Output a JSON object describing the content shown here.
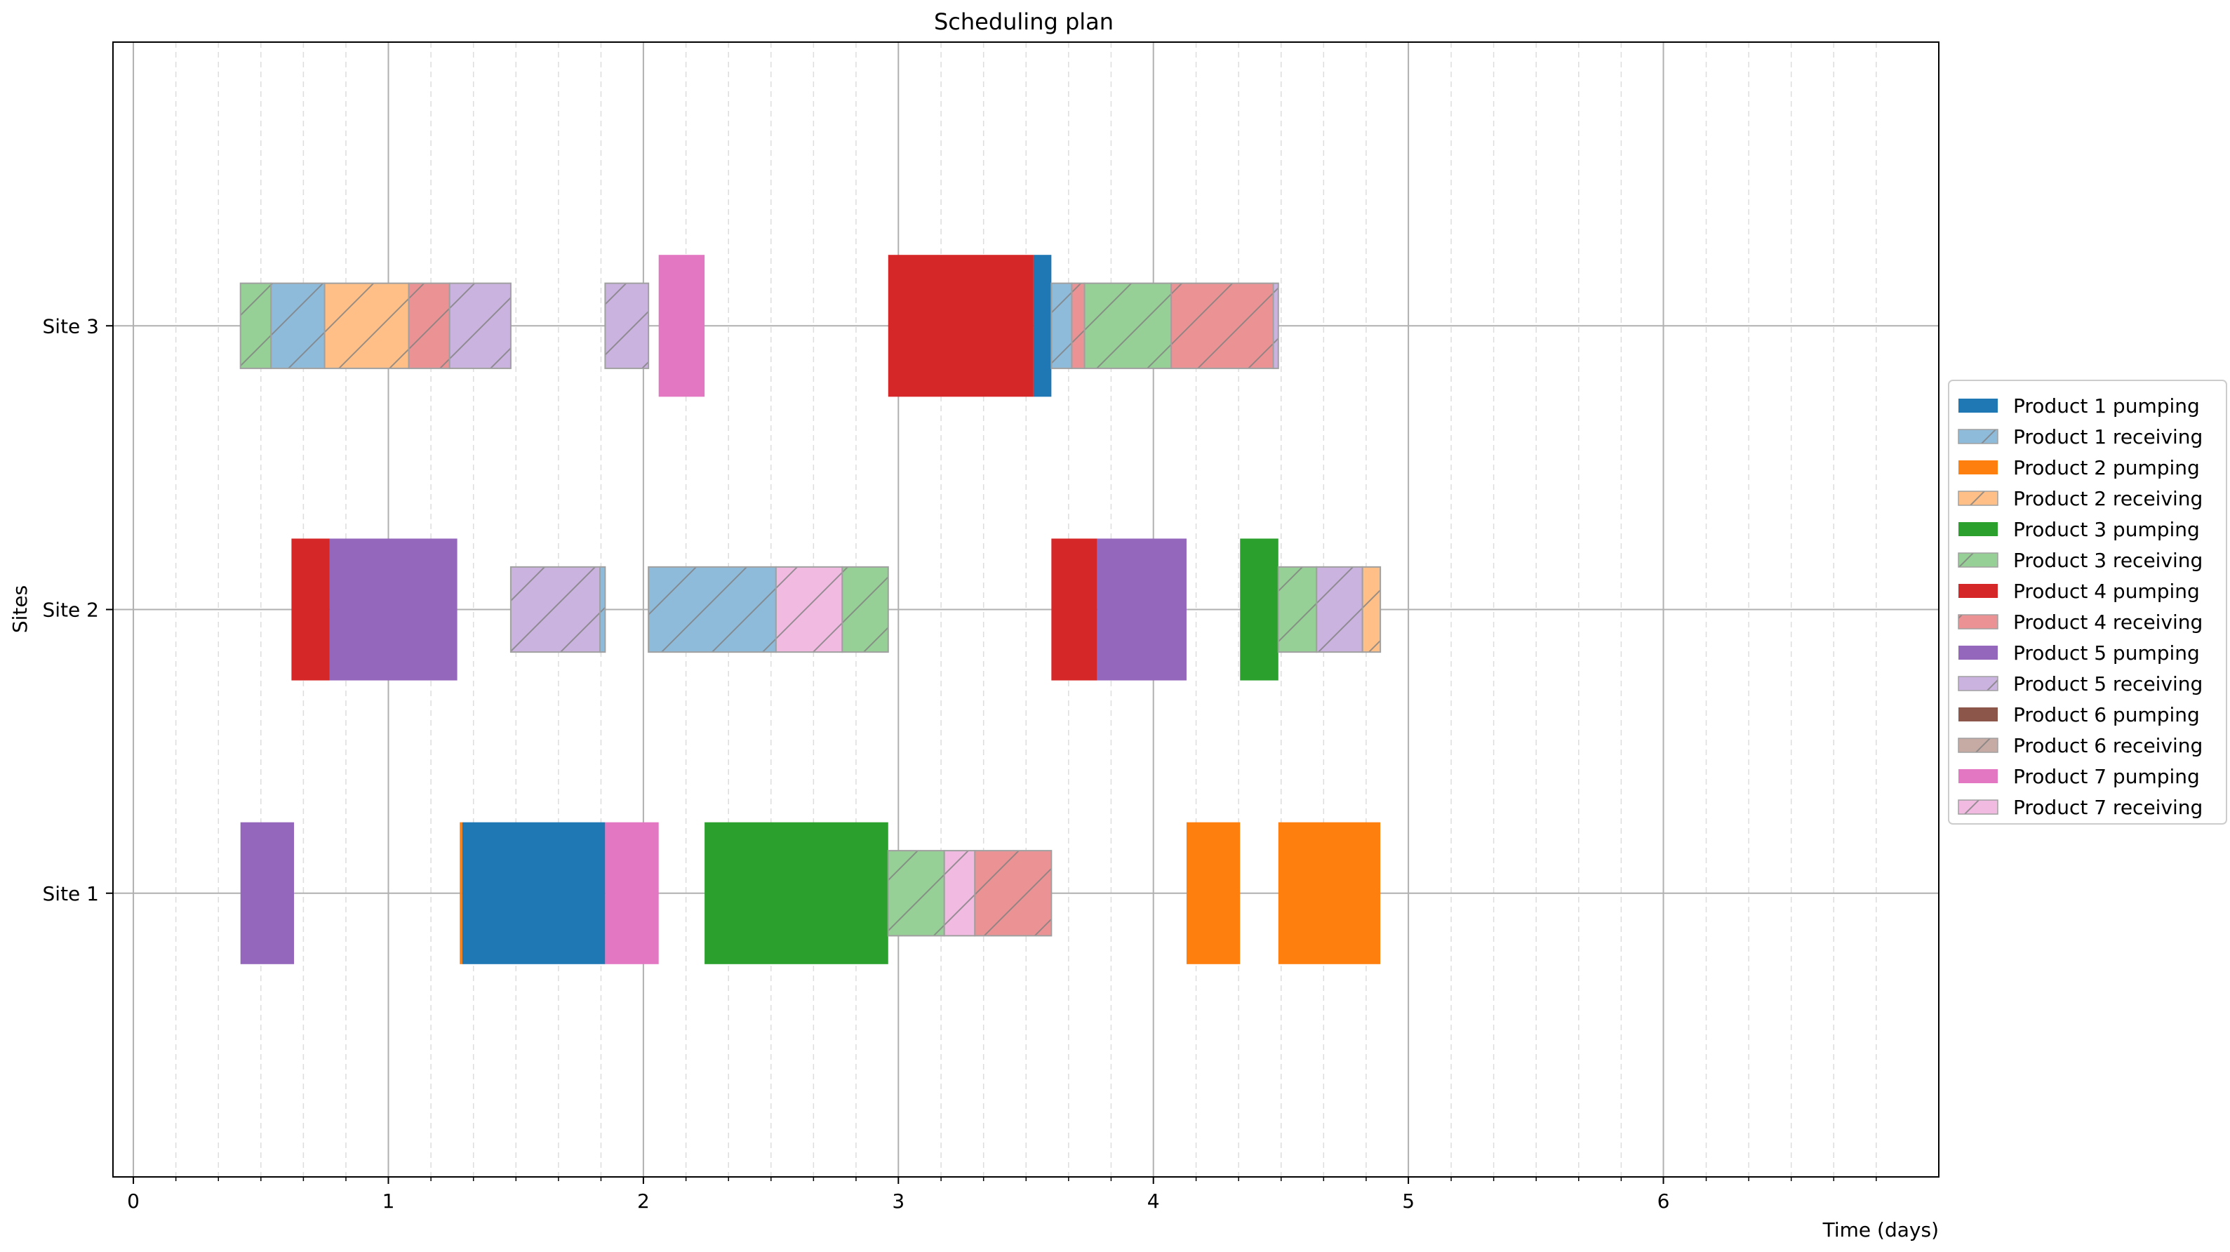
{
  "chart_data": {
    "type": "gantt",
    "title": "Scheduling plan",
    "xlabel": "Time (days)",
    "ylabel": "Sites",
    "xlim": [
      -0.08,
      7.08
    ],
    "x_major_ticks": [
      0,
      1,
      2,
      3,
      4,
      5,
      6
    ],
    "x_minor_step": 0.1667,
    "sites": [
      "Site 1",
      "Site 2",
      "Site 3"
    ],
    "ylim": [
      0,
      4
    ],
    "colors": {
      "Product 1": "#1f77b4",
      "Product 2": "#ff7f0e",
      "Product 3": "#2ca02c",
      "Product 4": "#d62728",
      "Product 5": "#9467bd",
      "Product 6": "#8c564b",
      "Product 7": "#e377c2"
    },
    "legend": [
      {
        "label": "Product 1 pumping",
        "product": "Product 1",
        "kind": "pumping"
      },
      {
        "label": "Product 1 receiving",
        "product": "Product 1",
        "kind": "receiving"
      },
      {
        "label": "Product 2 pumping",
        "product": "Product 2",
        "kind": "pumping"
      },
      {
        "label": "Product 2 receiving",
        "product": "Product 2",
        "kind": "receiving"
      },
      {
        "label": "Product 3 pumping",
        "product": "Product 3",
        "kind": "pumping"
      },
      {
        "label": "Product 3 receiving",
        "product": "Product 3",
        "kind": "receiving"
      },
      {
        "label": "Product 4 pumping",
        "product": "Product 4",
        "kind": "pumping"
      },
      {
        "label": "Product 4 receiving",
        "product": "Product 4",
        "kind": "receiving"
      },
      {
        "label": "Product 5 pumping",
        "product": "Product 5",
        "kind": "pumping"
      },
      {
        "label": "Product 5 receiving",
        "product": "Product 5",
        "kind": "receiving"
      },
      {
        "label": "Product 6 pumping",
        "product": "Product 6",
        "kind": "pumping"
      },
      {
        "label": "Product 6 receiving",
        "product": "Product 6",
        "kind": "receiving"
      },
      {
        "label": "Product 7 pumping",
        "product": "Product 7",
        "kind": "pumping"
      },
      {
        "label": "Product 7 receiving",
        "product": "Product 7",
        "kind": "receiving"
      }
    ],
    "tasks": [
      {
        "site": "Site 1",
        "product": "Product 5",
        "kind": "pumping",
        "start": 0.42,
        "end": 0.63
      },
      {
        "site": "Site 1",
        "product": "Product 2",
        "kind": "pumping",
        "start": 1.28,
        "end": 1.29
      },
      {
        "site": "Site 1",
        "product": "Product 1",
        "kind": "pumping",
        "start": 1.29,
        "end": 1.85
      },
      {
        "site": "Site 1",
        "product": "Product 7",
        "kind": "pumping",
        "start": 1.85,
        "end": 2.06
      },
      {
        "site": "Site 1",
        "product": "Product 3",
        "kind": "pumping",
        "start": 2.24,
        "end": 2.96
      },
      {
        "site": "Site 1",
        "product": "Product 3",
        "kind": "receiving",
        "start": 2.96,
        "end": 3.18
      },
      {
        "site": "Site 1",
        "product": "Product 7",
        "kind": "receiving",
        "start": 3.18,
        "end": 3.3
      },
      {
        "site": "Site 1",
        "product": "Product 4",
        "kind": "receiving",
        "start": 3.3,
        "end": 3.6
      },
      {
        "site": "Site 1",
        "product": "Product 2",
        "kind": "pumping",
        "start": 4.13,
        "end": 4.34
      },
      {
        "site": "Site 1",
        "product": "Product 2",
        "kind": "pumping",
        "start": 4.49,
        "end": 4.89
      },
      {
        "site": "Site 2",
        "product": "Product 4",
        "kind": "pumping",
        "start": 0.62,
        "end": 0.77
      },
      {
        "site": "Site 2",
        "product": "Product 5",
        "kind": "pumping",
        "start": 0.77,
        "end": 1.27
      },
      {
        "site": "Site 2",
        "product": "Product 5",
        "kind": "receiving",
        "start": 1.48,
        "end": 1.83
      },
      {
        "site": "Site 2",
        "product": "Product 1",
        "kind": "receiving",
        "start": 1.83,
        "end": 1.85
      },
      {
        "site": "Site 2",
        "product": "Product 1",
        "kind": "receiving",
        "start": 2.02,
        "end": 2.52
      },
      {
        "site": "Site 2",
        "product": "Product 7",
        "kind": "receiving",
        "start": 2.52,
        "end": 2.78
      },
      {
        "site": "Site 2",
        "product": "Product 3",
        "kind": "receiving",
        "start": 2.78,
        "end": 2.96
      },
      {
        "site": "Site 2",
        "product": "Product 4",
        "kind": "pumping",
        "start": 3.6,
        "end": 3.78
      },
      {
        "site": "Site 2",
        "product": "Product 5",
        "kind": "pumping",
        "start": 3.78,
        "end": 4.13
      },
      {
        "site": "Site 2",
        "product": "Product 3",
        "kind": "pumping",
        "start": 4.34,
        "end": 4.49
      },
      {
        "site": "Site 2",
        "product": "Product 3",
        "kind": "receiving",
        "start": 4.49,
        "end": 4.64
      },
      {
        "site": "Site 2",
        "product": "Product 5",
        "kind": "receiving",
        "start": 4.64,
        "end": 4.82
      },
      {
        "site": "Site 2",
        "product": "Product 2",
        "kind": "receiving",
        "start": 4.82,
        "end": 4.89
      },
      {
        "site": "Site 3",
        "product": "Product 3",
        "kind": "receiving",
        "start": 0.42,
        "end": 0.54
      },
      {
        "site": "Site 3",
        "product": "Product 1",
        "kind": "receiving",
        "start": 0.54,
        "end": 0.75
      },
      {
        "site": "Site 3",
        "product": "Product 2",
        "kind": "receiving",
        "start": 0.75,
        "end": 1.08
      },
      {
        "site": "Site 3",
        "product": "Product 4",
        "kind": "receiving",
        "start": 1.08,
        "end": 1.24
      },
      {
        "site": "Site 3",
        "product": "Product 5",
        "kind": "receiving",
        "start": 1.24,
        "end": 1.48
      },
      {
        "site": "Site 3",
        "product": "Product 5",
        "kind": "receiving",
        "start": 1.85,
        "end": 2.02
      },
      {
        "site": "Site 3",
        "product": "Product 7",
        "kind": "pumping",
        "start": 2.06,
        "end": 2.24
      },
      {
        "site": "Site 3",
        "product": "Product 4",
        "kind": "pumping",
        "start": 2.96,
        "end": 3.53
      },
      {
        "site": "Site 3",
        "product": "Product 1",
        "kind": "pumping",
        "start": 3.53,
        "end": 3.6
      },
      {
        "site": "Site 3",
        "product": "Product 1",
        "kind": "receiving",
        "start": 3.6,
        "end": 3.68
      },
      {
        "site": "Site 3",
        "product": "Product 4",
        "kind": "receiving",
        "start": 3.68,
        "end": 3.73
      },
      {
        "site": "Site 3",
        "product": "Product 3",
        "kind": "receiving",
        "start": 3.73,
        "end": 4.07
      },
      {
        "site": "Site 3",
        "product": "Product 4",
        "kind": "receiving",
        "start": 4.07,
        "end": 4.47
      },
      {
        "site": "Site 3",
        "product": "Product 5",
        "kind": "receiving",
        "start": 4.47,
        "end": 4.49
      }
    ]
  }
}
